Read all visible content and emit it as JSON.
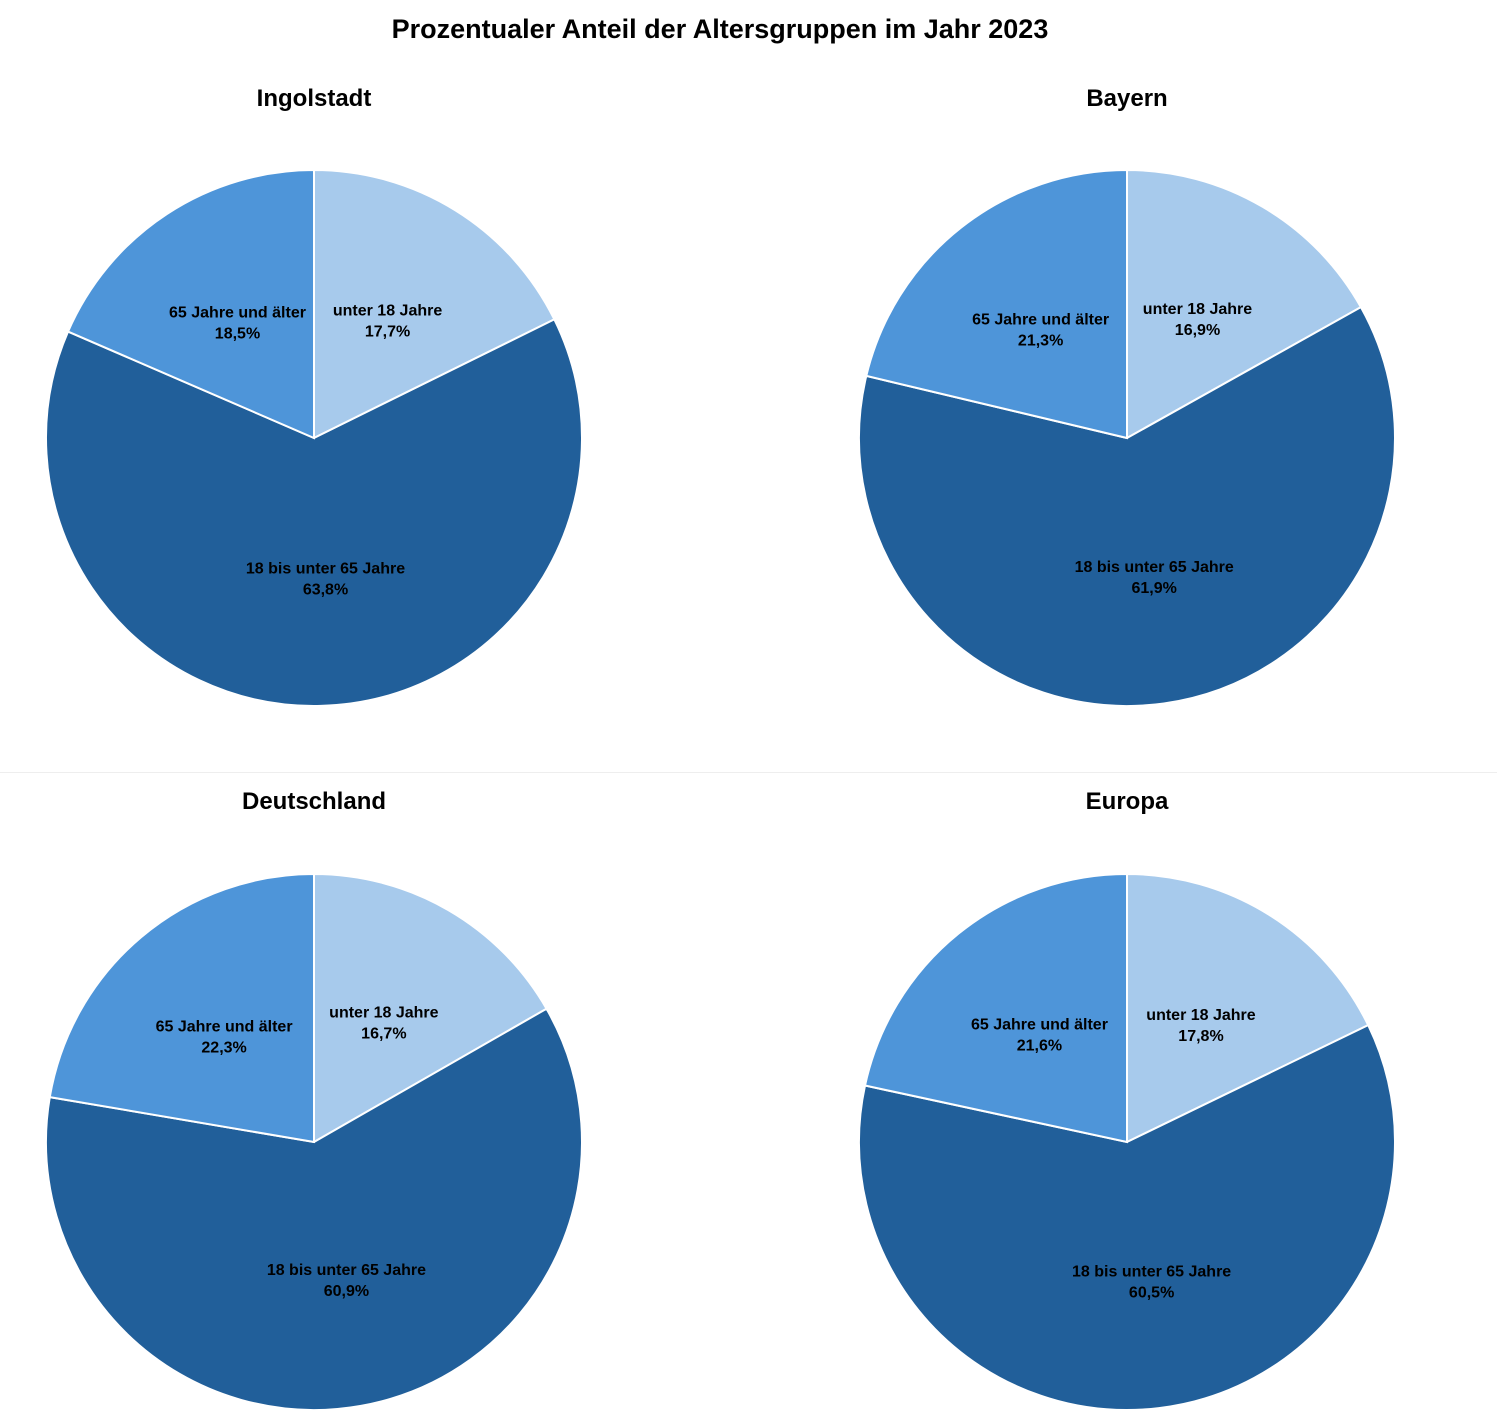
{
  "title": "Prozentualer Anteil der Altersgruppen im Jahr 2023",
  "colors": {
    "unter 18 Jahre": "#a7caec",
    "18 bis unter 65 Jahre": "#215f9a",
    "65 Jahre und älter": "#4e95d9"
  },
  "chart_data": [
    {
      "type": "pie",
      "title": "Ingolstadt",
      "categories": [
        "unter 18 Jahre",
        "18 bis unter 65 Jahre",
        "65 Jahre und älter"
      ],
      "values": [
        17.7,
        63.8,
        18.5
      ],
      "value_labels": [
        "17,7%",
        "63,8%",
        "18,5%"
      ]
    },
    {
      "type": "pie",
      "title": "Bayern",
      "categories": [
        "unter 18 Jahre",
        "18 bis unter 65 Jahre",
        "65 Jahre und älter"
      ],
      "values": [
        16.9,
        61.9,
        21.3
      ],
      "value_labels": [
        "16,9%",
        "61,9%",
        "21,3%"
      ]
    },
    {
      "type": "pie",
      "title": "Deutschland",
      "categories": [
        "unter 18 Jahre",
        "18 bis unter 65 Jahre",
        "65 Jahre und älter"
      ],
      "values": [
        16.7,
        60.9,
        22.3
      ],
      "value_labels": [
        "16,7%",
        "60,9%",
        "22,3%"
      ]
    },
    {
      "type": "pie",
      "title": "Europa",
      "categories": [
        "unter 18 Jahre",
        "18 bis unter 65 Jahre",
        "65 Jahre und älter"
      ],
      "values": [
        17.8,
        60.5,
        21.6
      ],
      "value_labels": [
        "17,8%",
        "60,5%",
        "21,6%"
      ]
    }
  ]
}
